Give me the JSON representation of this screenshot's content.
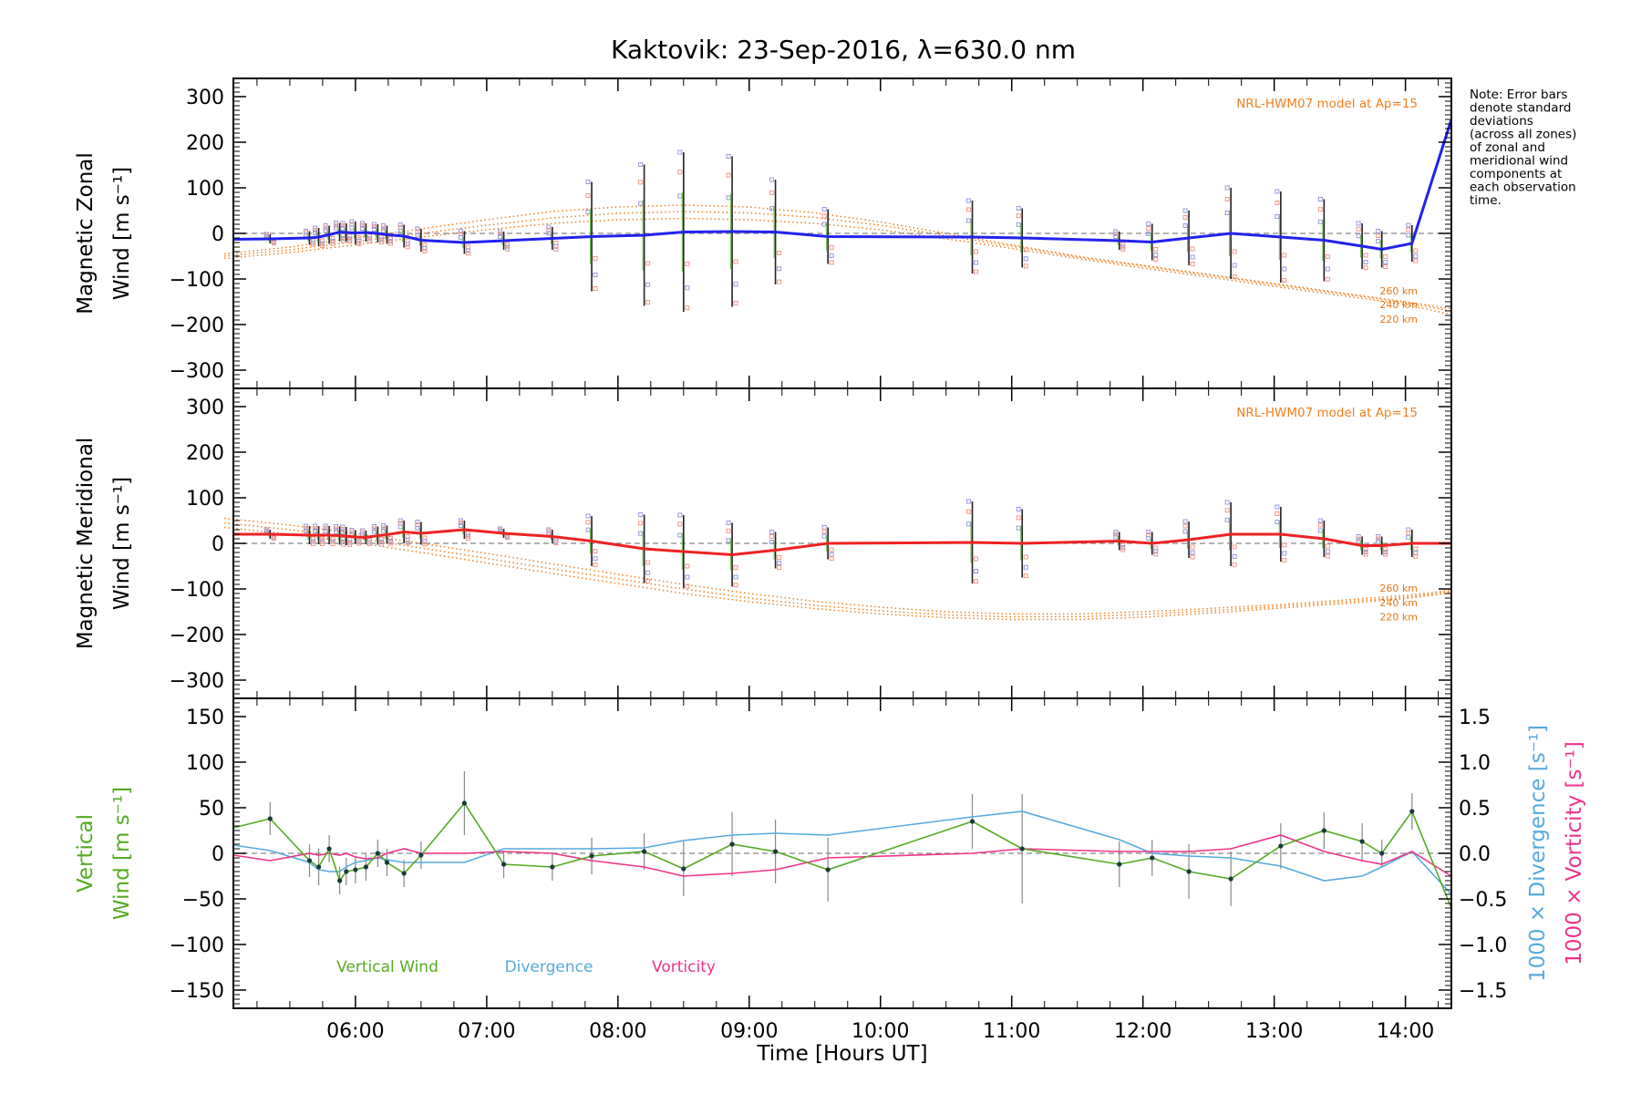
{
  "title": "Kaktovik: 23-Sep-2016, λ=630.0 nm",
  "note": [
    "Note: Error bars",
    "denote standard",
    "deviations",
    "(across all zones)",
    "of zonal and",
    "meridional wind",
    "components at",
    "each observation",
    "time."
  ],
  "model_label": "NRL-HWM07 model at Ap=15",
  "altitude_labels": [
    "260 km",
    "240 km",
    "220 km"
  ],
  "x_axis": {
    "label": "Time [Hours UT]",
    "ticks": [
      "06:00",
      "07:00",
      "08:00",
      "09:00",
      "10:00",
      "11:00",
      "12:00",
      "13:00",
      "14:00"
    ]
  },
  "colors": {
    "zonal": "#2222ee",
    "meridional": "#ee2222",
    "vertical": "#55aa22",
    "divergence": "#55aadd",
    "vorticity": "#ee3388",
    "model": "#f08020",
    "zone_blue": "#9999dd",
    "zone_red": "#ee9988"
  },
  "panels": {
    "zonal": {
      "ylabel_line1": "Magnetic Zonal",
      "ylabel_line2": "Wind [m s⁻¹]",
      "yticks": [
        "300",
        "200",
        "100",
        "0",
        "−100",
        "−200",
        "−300"
      ]
    },
    "meridional": {
      "ylabel_line1": "Magnetic Meridional",
      "ylabel_line2": "Wind [m s⁻¹]",
      "yticks": [
        "300",
        "200",
        "100",
        "0",
        "−100",
        "−200",
        "−300"
      ]
    },
    "vertical": {
      "ylabel_line1": "Vertical",
      "ylabel_line2": "Wind [m s⁻¹]",
      "yticks": [
        "150",
        "100",
        "50",
        "0",
        "−50",
        "−100",
        "−150"
      ],
      "right_yticks": [
        "1.5",
        "1.0",
        "0.5",
        "0.0",
        "−0.5",
        "−1.0",
        "−1.5"
      ],
      "right_label_divergence": "1000 × Divergence [s⁻¹]",
      "right_label_vorticity": "1000 × Vorticity [s⁻¹]"
    }
  },
  "legend": {
    "vertical": "Vertical Wind",
    "divergence": "Divergence",
    "vorticity": "Vorticity"
  },
  "chart_data": [
    {
      "type": "line",
      "title": "Kaktovik: 23-Sep-2016, λ=630.0 nm",
      "xlabel": "Time [Hours UT]",
      "ylabel": "Magnetic Zonal Wind [m s⁻¹]",
      "xlim": [
        5.07,
        14.35
      ],
      "ylim": [
        -340,
        340
      ],
      "grid": false,
      "series": [
        {
          "name": "Zonal",
          "x": [
            5.07,
            5.35,
            5.65,
            5.72,
            5.8,
            5.88,
            5.93,
            6.0,
            6.08,
            6.17,
            6.24,
            6.37,
            6.5,
            6.83,
            7.13,
            7.5,
            7.8,
            8.2,
            8.5,
            8.87,
            9.2,
            9.6,
            10.7,
            11.08,
            11.82,
            12.07,
            12.35,
            12.67,
            13.05,
            13.38,
            13.67,
            13.82,
            14.05,
            14.35
          ],
          "y": [
            -13,
            -12,
            -10,
            -8,
            -3,
            3,
            2,
            1,
            2,
            0,
            -3,
            -6,
            -15,
            -20,
            -16,
            -11,
            -7,
            -4,
            3,
            4,
            3,
            -7,
            -8,
            -10,
            -16,
            -19,
            -10,
            0,
            -8,
            -15,
            -28,
            -35,
            -22,
            250
          ]
        }
      ],
      "error_bar_halfwidth": [
        0,
        10,
        15,
        20,
        20,
        20,
        20,
        25,
        20,
        20,
        20,
        25,
        25,
        25,
        20,
        25,
        120,
        155,
        175,
        165,
        115,
        60,
        80,
        65,
        20,
        40,
        60,
        100,
        100,
        90,
        50,
        40,
        40,
        0
      ],
      "model_curves": [
        {
          "name": "260 km",
          "x": [
            5.0,
            5.5,
            6.0,
            6.5,
            7.0,
            7.5,
            8.0,
            8.5,
            9.0,
            9.5,
            10.0,
            10.5,
            11.0,
            11.5,
            12.0,
            12.5,
            13.0,
            13.5,
            14.0,
            14.35
          ],
          "y": [
            -45,
            -30,
            -10,
            10,
            30,
            48,
            58,
            62,
            58,
            45,
            25,
            0,
            -25,
            -50,
            -70,
            -90,
            -110,
            -130,
            -150,
            -165
          ]
        },
        {
          "name": "240 km",
          "x": [
            5.0,
            5.5,
            6.0,
            6.5,
            7.0,
            7.5,
            8.0,
            8.5,
            9.0,
            9.5,
            10.0,
            10.5,
            11.0,
            11.5,
            12.0,
            12.5,
            13.0,
            13.5,
            14.0,
            14.35
          ],
          "y": [
            -50,
            -36,
            -18,
            0,
            18,
            34,
            44,
            48,
            45,
            35,
            18,
            -5,
            -28,
            -52,
            -72,
            -92,
            -112,
            -132,
            -152,
            -170
          ]
        },
        {
          "name": "220 km",
          "x": [
            5.0,
            5.5,
            6.0,
            6.5,
            7.0,
            7.5,
            8.0,
            8.5,
            9.0,
            9.5,
            10.0,
            10.5,
            11.0,
            11.5,
            12.0,
            12.5,
            13.0,
            13.5,
            14.0,
            14.35
          ],
          "y": [
            -55,
            -42,
            -25,
            -8,
            8,
            22,
            30,
            33,
            30,
            22,
            8,
            -12,
            -33,
            -55,
            -76,
            -96,
            -116,
            -136,
            -156,
            -178
          ]
        }
      ]
    },
    {
      "type": "line",
      "xlabel": "Time [Hours UT]",
      "ylabel": "Magnetic Meridional Wind [m s⁻¹]",
      "xlim": [
        5.07,
        14.35
      ],
      "ylim": [
        -340,
        340
      ],
      "grid": false,
      "series": [
        {
          "name": "Meridional",
          "x": [
            5.07,
            5.35,
            5.65,
            5.72,
            5.8,
            5.88,
            5.93,
            6.0,
            6.08,
            6.17,
            6.24,
            6.37,
            6.5,
            6.83,
            7.13,
            7.5,
            7.8,
            8.2,
            8.5,
            8.87,
            9.2,
            9.6,
            10.7,
            11.08,
            11.82,
            12.07,
            12.35,
            12.67,
            13.05,
            13.38,
            13.67,
            13.82,
            14.05,
            14.35
          ],
          "y": [
            20,
            20,
            18,
            18,
            18,
            17,
            16,
            14,
            13,
            17,
            19,
            25,
            22,
            30,
            22,
            15,
            5,
            -12,
            -18,
            -25,
            -15,
            0,
            2,
            0,
            5,
            0,
            8,
            20,
            20,
            10,
            -5,
            -5,
            0,
            0
          ]
        }
      ],
      "error_bar_halfwidth": [
        0,
        10,
        20,
        20,
        20,
        20,
        20,
        15,
        15,
        20,
        20,
        25,
        25,
        20,
        10,
        15,
        55,
        75,
        80,
        70,
        40,
        35,
        90,
        75,
        20,
        25,
        40,
        70,
        60,
        40,
        20,
        20,
        30,
        0
      ],
      "model_curves": [
        {
          "name": "260 km",
          "x": [
            5.0,
            5.5,
            6.0,
            6.5,
            7.0,
            7.5,
            8.0,
            8.5,
            9.0,
            9.5,
            10.0,
            10.5,
            11.0,
            11.5,
            12.0,
            12.5,
            13.0,
            13.5,
            14.0,
            14.35
          ],
          "y": [
            55,
            40,
            22,
            0,
            -22,
            -45,
            -68,
            -90,
            -110,
            -127,
            -140,
            -150,
            -155,
            -155,
            -150,
            -143,
            -135,
            -125,
            -114,
            -103
          ]
        },
        {
          "name": "240 km",
          "x": [
            5.0,
            5.5,
            6.0,
            6.5,
            7.0,
            7.5,
            8.0,
            8.5,
            9.0,
            9.5,
            10.0,
            10.5,
            11.0,
            11.5,
            12.0,
            12.5,
            13.0,
            13.5,
            14.0,
            14.35
          ],
          "y": [
            45,
            30,
            12,
            -10,
            -33,
            -56,
            -78,
            -100,
            -120,
            -136,
            -148,
            -157,
            -161,
            -161,
            -156,
            -148,
            -139,
            -129,
            -118,
            -106
          ]
        },
        {
          "name": "220 km",
          "x": [
            5.0,
            5.5,
            6.0,
            6.5,
            7.0,
            7.5,
            8.0,
            8.5,
            9.0,
            9.5,
            10.0,
            10.5,
            11.0,
            11.5,
            12.0,
            12.5,
            13.0,
            13.5,
            14.0,
            14.35
          ],
          "y": [
            35,
            20,
            2,
            -20,
            -43,
            -66,
            -88,
            -110,
            -128,
            -143,
            -155,
            -163,
            -167,
            -167,
            -162,
            -153,
            -143,
            -133,
            -121,
            -109
          ]
        }
      ]
    },
    {
      "type": "line",
      "xlabel": "Time [Hours UT]",
      "ylabel": "Vertical Wind [m s⁻¹]",
      "xlim": [
        5.07,
        14.35
      ],
      "ylim": [
        -170,
        170
      ],
      "y2lim": [
        -1.7,
        1.7
      ],
      "grid": false,
      "series": [
        {
          "name": "Vertical Wind",
          "x": [
            5.07,
            5.35,
            5.65,
            5.72,
            5.8,
            5.88,
            5.93,
            6.0,
            6.08,
            6.17,
            6.24,
            6.37,
            6.5,
            6.83,
            7.13,
            7.5,
            7.8,
            8.2,
            8.5,
            8.87,
            9.2,
            9.6,
            10.7,
            11.08,
            11.82,
            12.07,
            12.35,
            12.67,
            13.05,
            13.38,
            13.67,
            13.82,
            14.05,
            14.35
          ],
          "y": [
            28,
            38,
            -8,
            -15,
            5,
            -30,
            -20,
            -18,
            -15,
            0,
            -10,
            -22,
            -2,
            55,
            -12,
            -15,
            -3,
            2,
            -17,
            10,
            2,
            -18,
            35,
            5,
            -12,
            -5,
            -20,
            -28,
            8,
            25,
            13,
            0,
            46,
            -60
          ],
          "error": [
            0,
            18,
            18,
            20,
            15,
            15,
            15,
            15,
            15,
            15,
            15,
            15,
            15,
            35,
            15,
            15,
            20,
            20,
            30,
            35,
            35,
            35,
            30,
            60,
            25,
            20,
            30,
            30,
            25,
            20,
            20,
            15,
            20,
            0
          ]
        },
        {
          "name": "Divergence",
          "axis": "right",
          "x": [
            5.07,
            5.35,
            5.65,
            5.72,
            5.8,
            5.88,
            5.93,
            6.0,
            6.08,
            6.17,
            6.24,
            6.37,
            6.5,
            6.83,
            7.13,
            7.5,
            7.8,
            8.2,
            8.5,
            8.87,
            9.2,
            9.6,
            10.7,
            11.08,
            11.82,
            12.07,
            12.35,
            12.67,
            13.05,
            13.38,
            13.67,
            13.82,
            14.05,
            14.35
          ],
          "y": [
            0.09,
            0.03,
            -0.1,
            -0.18,
            -0.2,
            -0.2,
            -0.15,
            -0.1,
            -0.08,
            -0.05,
            -0.07,
            -0.1,
            -0.1,
            -0.1,
            0.05,
            0.05,
            0.05,
            0.06,
            0.14,
            0.2,
            0.22,
            0.2,
            0.4,
            0.46,
            0.15,
            0.0,
            -0.03,
            -0.05,
            -0.14,
            -0.3,
            -0.25,
            -0.15,
            0.02,
            -0.45
          ]
        },
        {
          "name": "Vorticity",
          "axis": "right",
          "x": [
            5.07,
            5.35,
            5.65,
            5.72,
            5.8,
            5.88,
            5.93,
            6.0,
            6.08,
            6.17,
            6.24,
            6.37,
            6.5,
            6.83,
            7.13,
            7.5,
            7.8,
            8.2,
            8.5,
            8.87,
            9.2,
            9.6,
            10.7,
            11.08,
            11.82,
            12.07,
            12.35,
            12.67,
            13.05,
            13.38,
            13.67,
            13.82,
            14.05,
            14.35
          ],
          "y": [
            -0.02,
            -0.08,
            0.0,
            -0.02,
            0.0,
            -0.02,
            0.0,
            -0.04,
            -0.06,
            -0.05,
            0.0,
            0.05,
            0.0,
            0.0,
            0.02,
            0.0,
            -0.08,
            -0.15,
            -0.25,
            -0.22,
            -0.18,
            -0.05,
            0.0,
            0.05,
            0.02,
            0.02,
            0.02,
            0.05,
            0.2,
            0.02,
            -0.08,
            -0.12,
            0.02,
            -0.25
          ]
        }
      ]
    }
  ]
}
